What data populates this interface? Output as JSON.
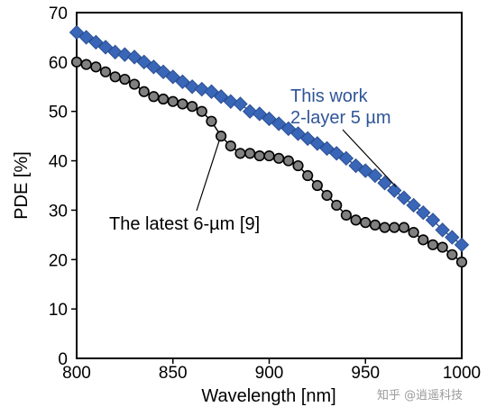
{
  "chart_data": {
    "type": "line",
    "title": "",
    "xlabel": "Wavelength [nm]",
    "ylabel": "PDE [%]",
    "xlim": [
      800,
      1000
    ],
    "ylim": [
      0,
      70
    ],
    "xticks": [
      800,
      850,
      900,
      950,
      1000
    ],
    "yticks": [
      0,
      10,
      20,
      30,
      40,
      50,
      60,
      70
    ],
    "xtick_labels": [
      "800",
      "850",
      "900",
      "950",
      "1000"
    ],
    "ytick_labels": [
      "0",
      "10",
      "20",
      "30",
      "40",
      "50",
      "60",
      "70"
    ],
    "grid": false,
    "series": [
      {
        "name": "This work 2-layer 5 µm",
        "color": "#3a66b8",
        "marker": "diamond",
        "x": [
          800,
          805,
          810,
          815,
          820,
          825,
          830,
          835,
          840,
          845,
          850,
          855,
          860,
          865,
          870,
          875,
          880,
          885,
          890,
          895,
          900,
          905,
          910,
          915,
          920,
          925,
          930,
          935,
          940,
          945,
          950,
          955,
          960,
          965,
          970,
          975,
          980,
          985,
          990,
          995,
          1000
        ],
        "values": [
          66,
          65,
          64,
          63,
          62,
          61.5,
          61,
          60,
          59,
          58,
          57,
          56,
          55,
          54.5,
          54,
          53,
          52,
          51.5,
          50,
          49.5,
          48.5,
          47.5,
          46.5,
          45.5,
          44.5,
          43.5,
          42.5,
          41.5,
          40.5,
          39,
          38,
          37,
          35.5,
          34,
          32.5,
          31,
          29.5,
          28,
          26,
          24.5,
          23
        ]
      },
      {
        "name": "The latest 6-µm [9]",
        "color": "#000000",
        "marker": "circle",
        "x": [
          800,
          805,
          810,
          815,
          820,
          825,
          830,
          835,
          840,
          845,
          850,
          855,
          860,
          865,
          870,
          875,
          880,
          885,
          890,
          895,
          900,
          905,
          910,
          915,
          920,
          925,
          930,
          935,
          940,
          945,
          950,
          955,
          960,
          965,
          970,
          975,
          980,
          985,
          990,
          995,
          1000
        ],
        "values": [
          60,
          59.5,
          59,
          58,
          57,
          56.5,
          55.5,
          54,
          53,
          52.5,
          52,
          51.5,
          51,
          50,
          48,
          45,
          43,
          41.5,
          41.5,
          41,
          41,
          40.5,
          40,
          39,
          37,
          35,
          33,
          31,
          29,
          28,
          27.5,
          27,
          26.5,
          26.5,
          26.5,
          25.5,
          24,
          23,
          22.5,
          21,
          19.5
        ]
      }
    ],
    "annotations": [
      {
        "lines": [
          "This work",
          "2-layer 5 µm"
        ],
        "color": "#2f5597",
        "pointer_series": 0
      },
      {
        "lines": [
          "The latest 6-µm [9]"
        ],
        "color": "#000000",
        "pointer_series": 1
      }
    ]
  },
  "watermark": "知乎 @逍遥科技"
}
